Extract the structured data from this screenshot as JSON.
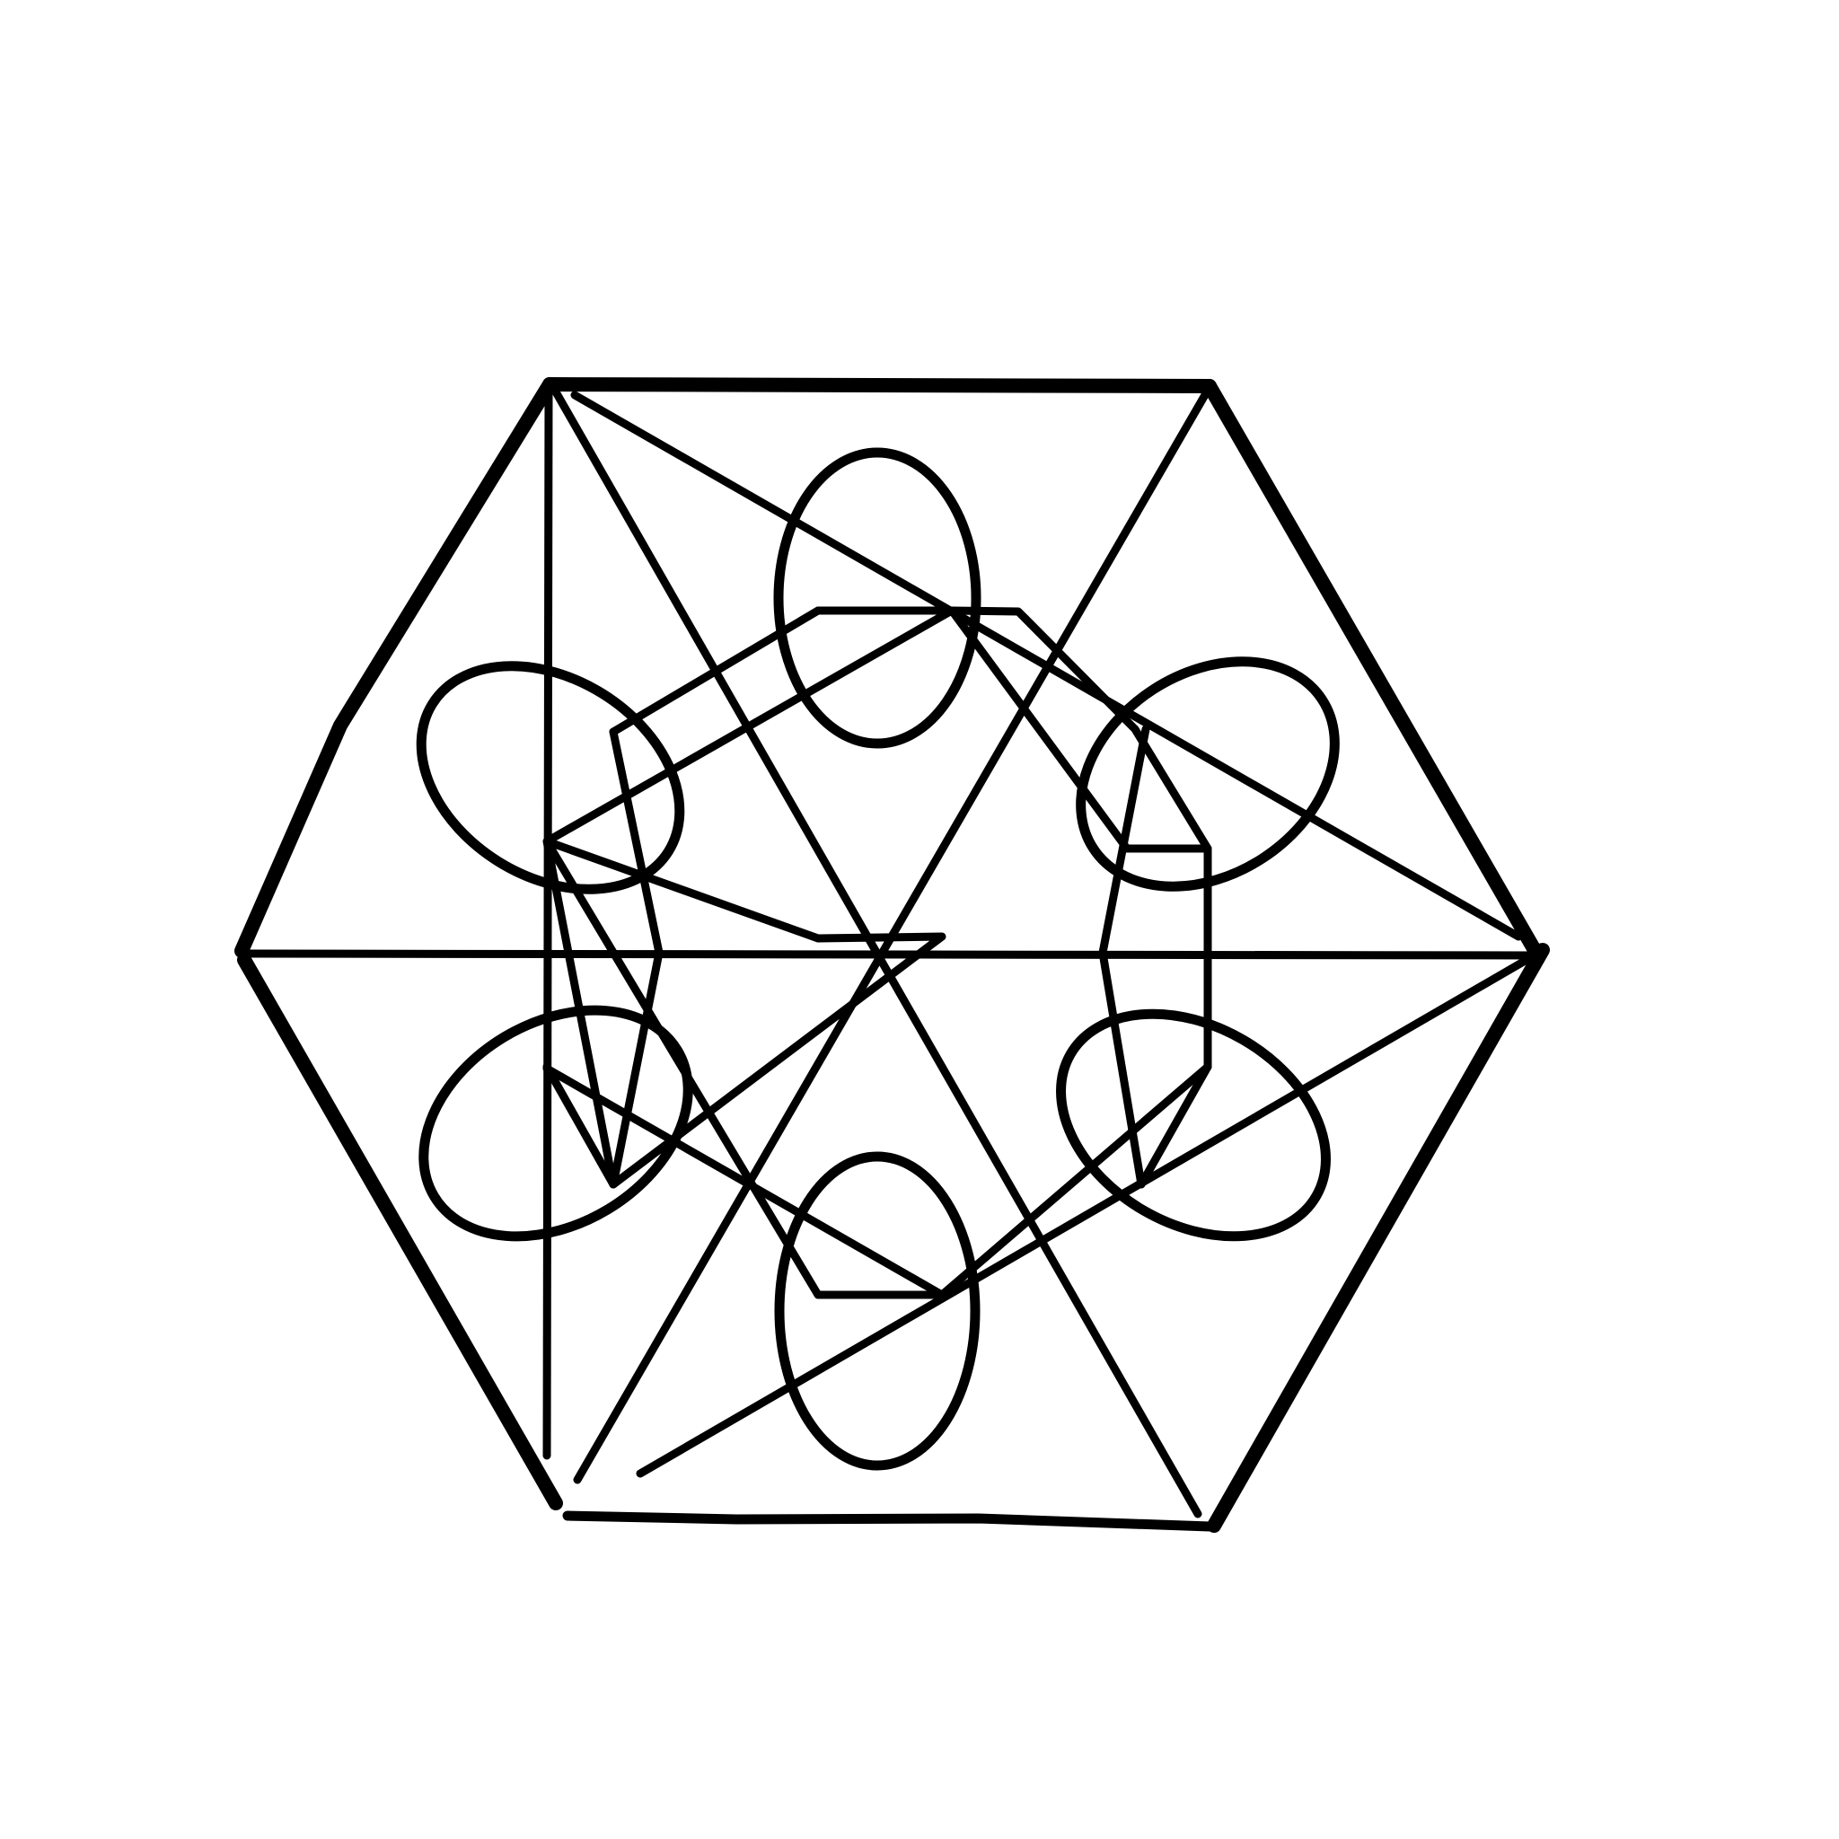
{
  "drawing": {
    "ink_color": "#000000",
    "background_color": "#ffffff"
  }
}
